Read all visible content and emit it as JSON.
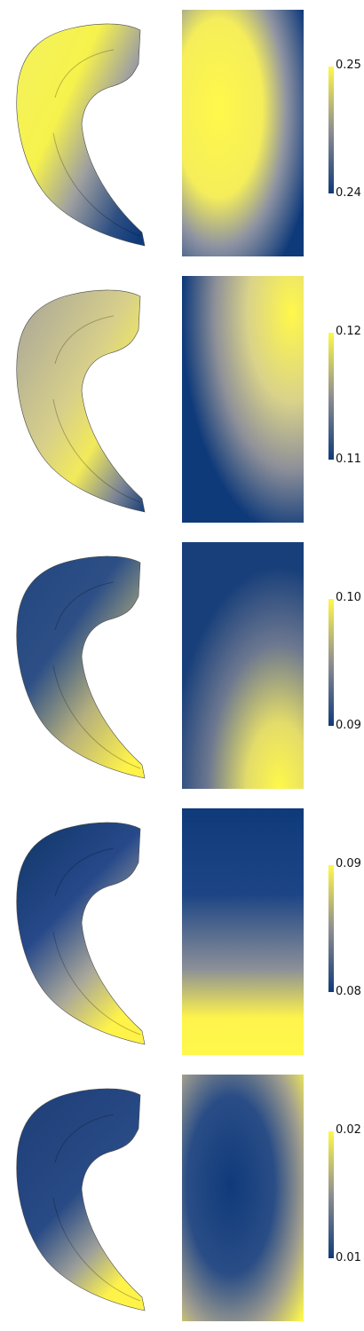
{
  "colors": {
    "low": "#0f3a7a",
    "mid": "#8f8f90",
    "high": "#fff84a"
  },
  "panels": [
    {
      "max_label": "0.25",
      "min_label": "0.24",
      "mesh_gradient": "top-yellow"
    },
    {
      "max_label": "0.12",
      "min_label": "0.11",
      "mesh_gradient": "right-yellow"
    },
    {
      "max_label": "0.10",
      "min_label": "0.09",
      "mesh_gradient": "bottom-yellow"
    },
    {
      "max_label": "0.09",
      "min_label": "0.08",
      "mesh_gradient": "bottom-yellow"
    },
    {
      "max_label": "0.02",
      "min_label": "0.01",
      "mesh_gradient": "bottom-yellow"
    }
  ]
}
